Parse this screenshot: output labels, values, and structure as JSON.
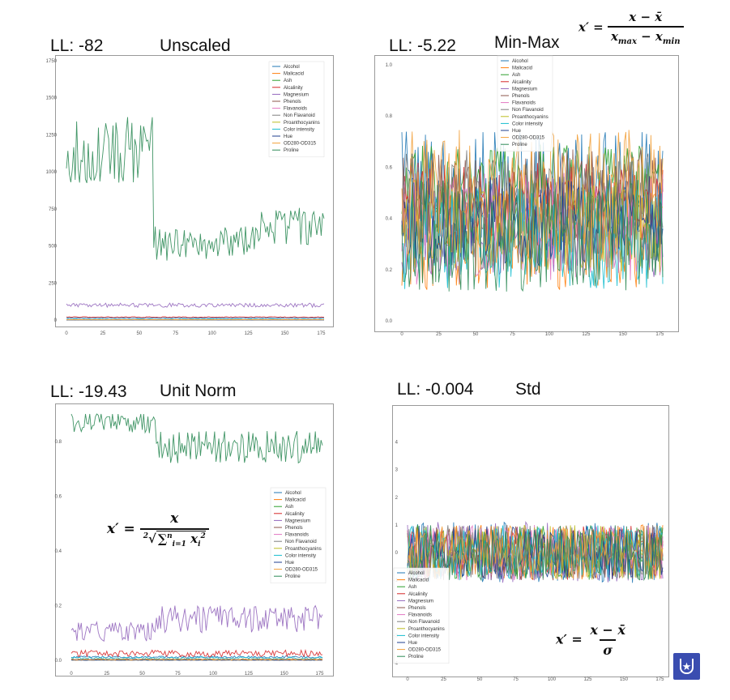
{
  "panels": [
    {
      "ll_text": "LL: -82",
      "scaling_name": "Unscaled",
      "formula": null
    },
    {
      "ll_text": "LL: -5.22",
      "scaling_name": "Min-Max",
      "formula": {
        "lhs": "x′ =",
        "numerator": "x − x̄",
        "denominator": "x",
        "den_sub_a": "max",
        "den_mid": " − x",
        "den_sub_b": "min"
      }
    },
    {
      "ll_text": "LL: -19.43",
      "scaling_name": "Unit Norm",
      "formula": {
        "lhs": "x′ =",
        "numerator": "x",
        "root_index": "2",
        "sum_symbol": "∑",
        "sum_limits_top": "n",
        "sum_limits_bottom": "i=1",
        "term": "x",
        "term_sub": "i",
        "term_sup": "2"
      }
    },
    {
      "ll_text": "LL: -0.004",
      "scaling_name": "Std",
      "formula": {
        "lhs": "x′ =",
        "numerator": "x − x̄",
        "denominator": "σ"
      }
    }
  ],
  "badge_icon": "shield-star-icon",
  "series_names": [
    "Alcohol",
    "Malicacid",
    "Ash",
    "Alcalinity",
    "Magnesium",
    "Phenols",
    "Flavanoids",
    "Non Flavanoid",
    "Proanthocyanins",
    "Color intensity",
    "Hue",
    "OD280-OD315",
    "Proline"
  ],
  "series_colors": [
    "#1f77b4",
    "#ff7f0e",
    "#2ca02c",
    "#d62728",
    "#9467bd",
    "#8c564b",
    "#e377c2",
    "#7f7f7f",
    "#bcbd22",
    "#17becf",
    "#1f3f8f",
    "#f2a03a",
    "#2e8b57"
  ],
  "chart_data": [
    {
      "type": "line",
      "x": "sample index 0-177",
      "xticks": [
        "0",
        "25",
        "50",
        "75",
        "100",
        "125",
        "150",
        "175"
      ],
      "yticks": [
        "0",
        "250",
        "500",
        "750",
        "1000",
        "1250",
        "1500",
        "1750"
      ],
      "ylim": [
        0,
        1750
      ],
      "xlim": [
        0,
        177
      ],
      "legend_position": "top-right",
      "series": [
        {
          "name": "Alcohol",
          "level": 13,
          "amp": 1
        },
        {
          "name": "Malicacid",
          "level": 2.3,
          "amp": 1
        },
        {
          "name": "Ash",
          "level": 2.4,
          "amp": 0.3
        },
        {
          "name": "Alcalinity",
          "level": 19.5,
          "amp": 3
        },
        {
          "name": "Magnesium",
          "level": 100,
          "amp": 14
        },
        {
          "name": "Phenols",
          "level": 2.3,
          "amp": 0.6
        },
        {
          "name": "Flavanoids",
          "level": 2.0,
          "amp": 1
        },
        {
          "name": "Non Flavanoid",
          "level": 0.36,
          "amp": 0.1
        },
        {
          "name": "Proanthocyanins",
          "level": 1.6,
          "amp": 0.5
        },
        {
          "name": "Color intensity",
          "level": 5,
          "amp": 2
        },
        {
          "name": "Hue",
          "level": 0.96,
          "amp": 0.2
        },
        {
          "name": "OD280-OD315",
          "level": 2.6,
          "amp": 0.7
        },
        {
          "name": "Proline",
          "segments": [
            [
              0,
              59,
              1150,
              230
            ],
            [
              59,
              130,
              520,
              120
            ],
            [
              130,
              177,
              620,
              140
            ]
          ]
        }
      ]
    },
    {
      "type": "line",
      "xticks": [
        "0",
        "25",
        "50",
        "75",
        "100",
        "125",
        "150",
        "175"
      ],
      "yticks": [
        "0.0",
        "0.2",
        "0.4",
        "0.6",
        "0.8",
        "1.0"
      ],
      "ylim": [
        0,
        1.0
      ],
      "xlim": [
        0,
        177
      ],
      "legend_position": "top-center",
      "series": [
        {
          "name": "Alcohol",
          "level": 0.52,
          "amp": 0.22
        },
        {
          "name": "Malicacid",
          "level": 0.32,
          "amp": 0.2
        },
        {
          "name": "Ash",
          "level": 0.54,
          "amp": 0.15
        },
        {
          "name": "Alcalinity",
          "level": 0.46,
          "amp": 0.16
        },
        {
          "name": "Magnesium",
          "level": 0.32,
          "amp": 0.15
        },
        {
          "name": "Phenols",
          "level": 0.45,
          "amp": 0.22
        },
        {
          "name": "Flavanoids",
          "level": 0.36,
          "amp": 0.22
        },
        {
          "name": "Non Flavanoid",
          "level": 0.44,
          "amp": 0.24
        },
        {
          "name": "Proanthocyanins",
          "level": 0.37,
          "amp": 0.18
        },
        {
          "name": "Color intensity",
          "level": 0.32,
          "amp": 0.2
        },
        {
          "name": "Hue",
          "level": 0.39,
          "amp": 0.18
        },
        {
          "name": "OD280-OD315",
          "level": 0.49,
          "amp": 0.26
        },
        {
          "name": "Proline",
          "level": 0.33,
          "amp": 0.22
        }
      ]
    },
    {
      "type": "line",
      "xticks": [
        "0",
        "25",
        "50",
        "75",
        "100",
        "125",
        "150",
        "175"
      ],
      "yticks": [
        "0.0",
        "0.2",
        "0.4",
        "0.6",
        "0.8"
      ],
      "ylim": [
        0,
        0.9
      ],
      "xlim": [
        0,
        177
      ],
      "legend_position": "center-right",
      "series": [
        {
          "name": "Alcohol",
          "level": 0.012,
          "amp": 0.004
        },
        {
          "name": "Malicacid",
          "level": 0.003,
          "amp": 0.003
        },
        {
          "name": "Ash",
          "level": 0.002,
          "amp": 0.001
        },
        {
          "name": "Alcalinity",
          "level": 0.025,
          "amp": 0.012
        },
        {
          "name": "Magnesium",
          "segments": [
            [
              0,
              59,
              0.105,
              0.035
            ],
            [
              59,
              177,
              0.15,
              0.05
            ]
          ]
        },
        {
          "name": "Phenols",
          "level": 0.003,
          "amp": 0.002
        },
        {
          "name": "Flavanoids",
          "level": 0.002,
          "amp": 0.002
        },
        {
          "name": "Non Flavanoid",
          "level": 0.0005,
          "amp": 0.0003
        },
        {
          "name": "Proanthocyanins",
          "level": 0.002,
          "amp": 0.001
        },
        {
          "name": "Color intensity",
          "level": 0.008,
          "amp": 0.004
        },
        {
          "name": "Hue",
          "level": 0.001,
          "amp": 0.001
        },
        {
          "name": "OD280-OD315",
          "level": 0.003,
          "amp": 0.002
        },
        {
          "name": "Proline",
          "segments": [
            [
              0,
              59,
              0.87,
              0.04
            ],
            [
              59,
              177,
              0.78,
              0.06
            ]
          ]
        }
      ]
    },
    {
      "type": "line",
      "xticks": [
        "0",
        "25",
        "50",
        "75",
        "100",
        "125",
        "150",
        "175"
      ],
      "yticks": [
        "-4",
        "-3",
        "-2",
        "-1",
        "0",
        "1",
        "2",
        "3",
        "4"
      ],
      "ylim": [
        -4.1,
        4.6
      ],
      "xlim": [
        0,
        177
      ],
      "legend_position": "bottom-left",
      "series": [
        {
          "name": "Alcohol",
          "level": 0,
          "amp": 1.1
        },
        {
          "name": "Malicacid",
          "level": 0,
          "amp": 1.0
        },
        {
          "name": "Ash",
          "level": 0,
          "amp": 1.0
        },
        {
          "name": "Alcalinity",
          "level": 0,
          "amp": 1.0
        },
        {
          "name": "Magnesium",
          "level": 0,
          "amp": 1.1
        },
        {
          "name": "Phenols",
          "level": 0,
          "amp": 1.0
        },
        {
          "name": "Flavanoids",
          "level": 0,
          "amp": 1.0
        },
        {
          "name": "Non Flavanoid",
          "level": 0,
          "amp": 1.0
        },
        {
          "name": "Proanthocyanins",
          "level": 0,
          "amp": 1.0
        },
        {
          "name": "Color intensity",
          "level": 0,
          "amp": 1.0
        },
        {
          "name": "Hue",
          "level": 0,
          "amp": 1.0
        },
        {
          "name": "OD280-OD315",
          "level": 0,
          "amp": 1.0
        },
        {
          "name": "Proline",
          "level": 0,
          "amp": 1.0
        }
      ]
    }
  ]
}
